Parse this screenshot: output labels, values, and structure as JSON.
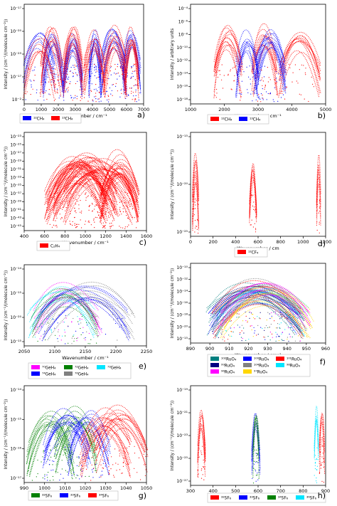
{
  "panel_letters": [
    "a)",
    "b)",
    "c)",
    "d)",
    "e)",
    "f)",
    "g)",
    "h)"
  ],
  "chart_data": [
    {
      "panel": "a)",
      "type": "scatter",
      "xlabel": "Wavenumber / cm⁻¹",
      "ylabel": "Intensity / (cm⁻¹/(molecule cm⁻²))",
      "xlim": [
        0,
        7000
      ],
      "xticks": [
        "0",
        "1000",
        "2000",
        "3000",
        "4000",
        "5000",
        "6000",
        "7000"
      ],
      "yticks": [
        "10⁻¹⁷",
        "10⁻²⁰",
        "10⁻²³",
        "10⁻¹⁷",
        "10⁻²"
      ],
      "colors": [
        "#0000ff",
        "#ff0000"
      ],
      "series": [
        {
          "name": "¹²CH₄",
          "bands": [
            [
              0,
              1800,
              7
            ],
            [
              1100,
              2300,
              10
            ],
            [
              2300,
              3400,
              12
            ],
            [
              3800,
              4500,
              11
            ],
            [
              4500,
              6000,
              12
            ],
            [
              5800,
              6800,
              11
            ]
          ]
        },
        {
          "name": "¹³CH₄",
          "bands": [
            [
              0,
              1800,
              6
            ],
            [
              1000,
              2200,
              9
            ],
            [
              2300,
              3400,
              11
            ],
            [
              3500,
              4700,
              10
            ],
            [
              4700,
              6000,
              11
            ],
            [
              5900,
              6700,
              10
            ]
          ]
        }
      ],
      "legend": "bottom"
    },
    {
      "panel": "b)",
      "type": "scatter",
      "xlabel": "Wavenumber / cm⁻¹",
      "ylabel": "Intensity / arbitrary units",
      "xlim": [
        0,
        5000
      ],
      "xticks": [
        "1000",
        "2000",
        "3000",
        "4000",
        "5000"
      ],
      "yticks": [
        "10⁻⁴",
        "10⁻⁶",
        "10⁻⁸",
        "10⁻¹⁰",
        "10⁻¹²",
        "10⁻¹⁴",
        "10⁻¹⁶",
        "10⁻¹⁸"
      ],
      "colors": [
        "#ff0000",
        "#0000ff"
      ],
      "series": [
        {
          "name": "¹²CH₄",
          "bands": [
            [
              900,
              1900,
              12
            ],
            [
              2300,
              3200,
              11
            ],
            [
              3300,
              4800,
              11
            ]
          ]
        },
        {
          "name": "¹³CH₄",
          "bands": [
            [
              1700,
              2500,
              10
            ],
            [
              2400,
              3500,
              12
            ]
          ]
        }
      ],
      "legend": "bottom"
    },
    {
      "panel": "c)",
      "type": "scatter",
      "xlabel": "Wavenumber / cm⁻¹",
      "ylabel": "Intensity / (cm⁻¹/(molecule cm⁻²))",
      "xlim": [
        400,
        1600
      ],
      "xticks": [
        "400",
        "600",
        "800",
        "1000",
        "1200",
        "1400",
        "1600"
      ],
      "yticks": [
        "10⁻²³",
        "10⁻²⁵",
        "10⁻²⁷",
        "10⁻²⁹",
        "10⁻³¹",
        "10⁻³³",
        "10⁻³⁵",
        "10⁻³⁷",
        "10⁻³⁹",
        "10⁻⁴¹",
        "10⁻⁴³",
        "10⁻⁴⁵"
      ],
      "colors": [
        "#ff0000"
      ],
      "series": [
        {
          "name": "C₂H₄",
          "bands": [
            [
              620,
              1200,
              22
            ],
            [
              700,
              1300,
              20
            ],
            [
              1150,
              1520,
              22
            ],
            [
              800,
              1460,
              18
            ]
          ]
        }
      ],
      "legend": "bottom"
    },
    {
      "panel": "d)",
      "type": "scatter",
      "xlabel": "Wavenumber / cm",
      "ylabel": "Intensity / (cm⁻¹/(molecule cm⁻²))",
      "xlim": [
        0,
        1350
      ],
      "xticks": [
        "0",
        "200",
        "400",
        "600",
        "800",
        "1000",
        "1200"
      ],
      "yticks": [
        "10⁻¹⁵",
        "10⁻²⁰",
        "10⁻²⁵"
      ],
      "colors": [
        "#ff0000"
      ],
      "series": [
        {
          "name": "¹²CF₄",
          "bands": [
            [
              20,
              80,
              8
            ],
            [
              590,
              660,
              7
            ],
            [
              1260,
              1300,
              6
            ]
          ]
        }
      ],
      "legend": "bottom"
    },
    {
      "panel": "e)",
      "type": "scatter",
      "xlabel": "Wavenumber / cm⁻¹",
      "ylabel": "Intensity / (cm⁻¹/(molecule cm⁻²))",
      "xlim": [
        2040,
        2265
      ],
      "xticks": [
        "2050",
        "2100",
        "2150",
        "2200",
        "2250"
      ],
      "yticks": [
        "10⁻¹⁴",
        "10⁻¹⁵",
        "10⁻²⁰",
        "10⁻¹⁵"
      ],
      "colors": [
        "#ff00ff",
        "#008000",
        "#00e5ff",
        "#0000ff",
        "#808080"
      ],
      "series": [
        {
          "name": "⁷⁰GeH₄",
          "bands": [
            [
              2060,
              2180,
              8
            ]
          ]
        },
        {
          "name": "⁷²GeH₄",
          "bands": [
            [
              2055,
              2175,
              7
            ]
          ]
        },
        {
          "name": "⁷³GeH₄",
          "bands": [
            [
              2050,
              2170,
              6
            ]
          ]
        },
        {
          "name": "⁷⁴GeH₄",
          "bands": [
            [
              2070,
              2230,
              8
            ]
          ]
        },
        {
          "name": "⁷⁶GeH₄",
          "bands": [
            [
              2080,
              2240,
              7
            ]
          ]
        }
      ],
      "legend": "bottom"
    },
    {
      "panel": "f)",
      "type": "scatter",
      "xlabel": "Wavenumber / cm⁻¹",
      "ylabel": "Intensity / (cm⁻¹/(molecule cm⁻²))",
      "xlim": [
        888,
        960
      ],
      "xticks": [
        "890",
        "900",
        "910",
        "920",
        "930",
        "940",
        "950",
        "960"
      ],
      "yticks": [
        "10⁻¹⁰",
        "10⁻¹²",
        "10⁻¹⁴",
        "10⁻¹⁶",
        "10⁻¹⁸",
        "10⁻²⁰",
        "10⁻¹⁵"
      ],
      "colors": [
        "#008080",
        "#0000ff",
        "#ff0000",
        "#000080",
        "#808080",
        "#00e5ff",
        "#ff00ff",
        "#ffd700"
      ],
      "series": [
        {
          "name": "¹⁰²RuO₄",
          "bands": [
            [
              898,
              945,
              8
            ]
          ]
        },
        {
          "name": "¹⁰⁰RuO₄",
          "bands": [
            [
              899,
              946,
              8
            ]
          ]
        },
        {
          "name": "¹⁰¹RuO₄",
          "bands": [
            [
              900,
              947,
              8
            ]
          ]
        },
        {
          "name": "⁹⁹RuO₄",
          "bands": [
            [
              901,
              948,
              8
            ]
          ]
        },
        {
          "name": "¹⁰⁴RuO₄",
          "bands": [
            [
              902,
              949,
              8
            ]
          ]
        },
        {
          "name": "⁹⁸RuO₄",
          "bands": [
            [
              903,
              950,
              8
            ]
          ]
        },
        {
          "name": "⁹⁶RuO₄",
          "bands": [
            [
              904,
              951,
              8
            ]
          ]
        },
        {
          "name": "⁹⁷RuO₄",
          "bands": [
            [
              905,
              952,
              8
            ]
          ]
        }
      ],
      "legend": "bottom"
    },
    {
      "panel": "g)",
      "type": "scatter",
      "xlabel": "Wavenumber / cm⁻¹",
      "ylabel": "Intensity / (cm⁻¹/(molecule cm⁻²))",
      "xlim": [
        990,
        1050
      ],
      "xticks": [
        "990",
        "1000",
        "1010",
        "1020",
        "1030",
        "1040",
        "1050"
      ],
      "yticks": [
        "10⁻¹⁴",
        "10⁻¹⁵",
        "10⁻¹⁶",
        "10⁻¹⁷"
      ],
      "colors": [
        "#008000",
        "#0000ff",
        "#ff0000"
      ],
      "series": [
        {
          "name": "³²SF₆",
          "bands": [
            [
              992,
              1014,
              12
            ],
            [
              1005,
              1025,
              10
            ]
          ]
        },
        {
          "name": "³³SF₆",
          "bands": [
            [
              1000,
              1022,
              11
            ],
            [
              1012,
              1032,
              10
            ]
          ]
        },
        {
          "name": "³⁴SF₆",
          "bands": [
            [
              1018,
              1042,
              12
            ],
            [
              1025,
              1050,
              11
            ]
          ]
        }
      ],
      "legend": "bottom"
    },
    {
      "panel": "h)",
      "type": "scatter",
      "xlabel": "Wavenumber / cm",
      "ylabel": "Intensity / (cm⁻¹/(molecule cm⁻²))",
      "xlim": [
        300,
        960
      ],
      "xticks": [
        "300",
        "400",
        "500",
        "600",
        "700",
        "800",
        "900"
      ],
      "yticks": [
        "10⁻¹⁹",
        "10⁻²¹",
        "10⁻²³",
        "10⁻²⁵",
        "10⁻²⁷"
      ],
      "colors": [
        "#ff0000",
        "#0000ff",
        "#008000",
        "#00e5ff",
        "#ff00ff"
      ],
      "series": [
        {
          "name": "³²SF₆",
          "bands": [
            [
              335,
              372,
              8
            ],
            [
              930,
              955,
              6
            ]
          ]
        },
        {
          "name": "³³SF₆",
          "bands": [
            [
              600,
              640,
              6
            ]
          ]
        },
        {
          "name": "³⁴SF₆",
          "bands": [
            [
              605,
              635,
              5
            ]
          ]
        },
        {
          "name": "³⁶SF₆",
          "bands": [
            [
              905,
              925,
              6
            ]
          ]
        }
      ],
      "legend": "bottom"
    }
  ]
}
